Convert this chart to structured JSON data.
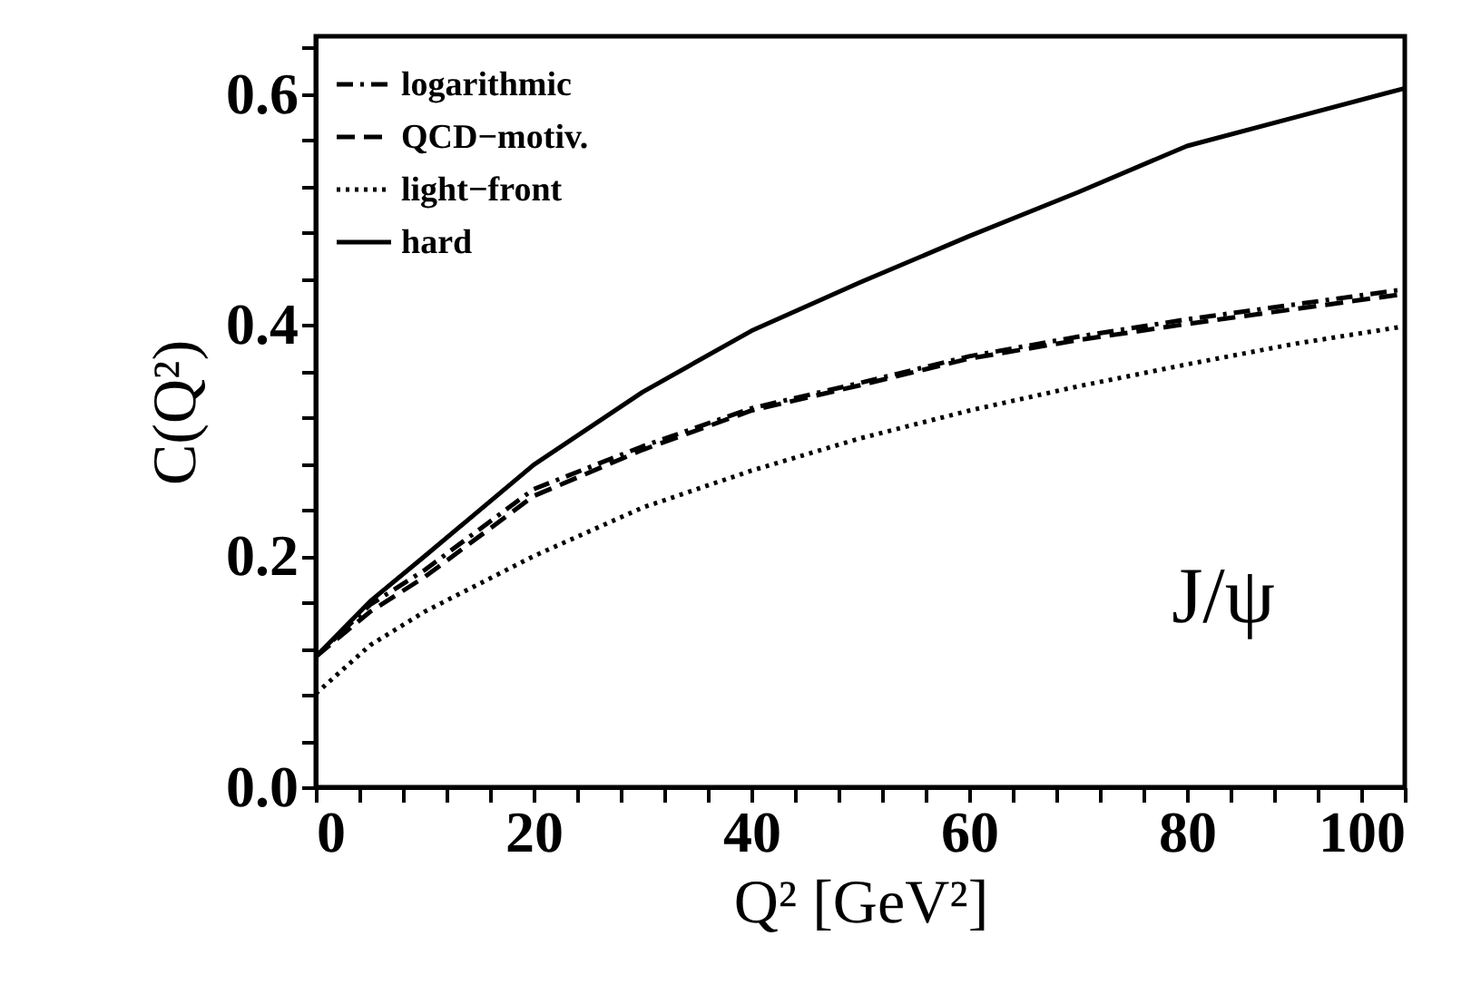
{
  "chart_data": {
    "type": "line",
    "xlabel": "Q² [GeV²]",
    "ylabel": "C(Q²)",
    "xlim": [
      0,
      100
    ],
    "ylim": [
      0,
      0.65
    ],
    "xticks": [
      0,
      {
        "value": 4,
        "label": null
      },
      {
        "value": 8,
        "label": null
      },
      {
        "value": 12,
        "label": null
      },
      {
        "value": 16,
        "label": null
      },
      20,
      {
        "value": 24,
        "label": null
      },
      {
        "value": 28,
        "label": null
      },
      {
        "value": 32,
        "label": null
      },
      {
        "value": 36,
        "label": null
      },
      40,
      {
        "value": 44,
        "label": null
      },
      {
        "value": 48,
        "label": null
      },
      {
        "value": 52,
        "label": null
      },
      {
        "value": 56,
        "label": null
      },
      60,
      {
        "value": 64,
        "label": null
      },
      {
        "value": 68,
        "label": null
      },
      {
        "value": 72,
        "label": null
      },
      {
        "value": 76,
        "label": null
      },
      80,
      {
        "value": 84,
        "label": null
      },
      {
        "value": 88,
        "label": null
      },
      {
        "value": 92,
        "label": null
      },
      {
        "value": 96,
        "label": null
      },
      100
    ],
    "yticks": [
      {
        "value": 0,
        "label": "0.0"
      },
      {
        "value": 0.04,
        "label": null
      },
      {
        "value": 0.08,
        "label": null
      },
      {
        "value": 0.12,
        "label": null
      },
      {
        "value": 0.16,
        "label": null
      },
      0.2,
      {
        "value": 0.24,
        "label": null
      },
      {
        "value": 0.28,
        "label": null
      },
      {
        "value": 0.32,
        "label": null
      },
      {
        "value": 0.36,
        "label": null
      },
      0.4,
      {
        "value": 0.44,
        "label": null
      },
      {
        "value": 0.48,
        "label": null
      },
      {
        "value": 0.52,
        "label": null
      },
      {
        "value": 0.56,
        "label": null
      },
      0.6,
      {
        "value": 0.64,
        "label": null
      }
    ],
    "x": [
      0,
      5,
      10,
      20,
      30,
      40,
      50,
      60,
      70,
      80,
      90,
      100
    ],
    "series": [
      {
        "name": "logarithmic",
        "color": "#000000",
        "line_style": "dashdot",
        "values": [
          0.113,
          0.158,
          0.188,
          0.258,
          0.295,
          0.328,
          0.35,
          0.373,
          0.39,
          0.405,
          0.418,
          0.431
        ]
      },
      {
        "name": "QCD−motiv.",
        "color": "#000000",
        "line_style": "dashed",
        "values": [
          0.113,
          0.152,
          0.182,
          0.252,
          0.292,
          0.326,
          0.348,
          0.371,
          0.387,
          0.401,
          0.414,
          0.427
        ]
      },
      {
        "name": "light−front",
        "color": "#000000",
        "line_style": "dotted",
        "values": [
          0.081,
          0.123,
          0.152,
          0.2,
          0.242,
          0.274,
          0.302,
          0.326,
          0.347,
          0.366,
          0.384,
          0.399
        ]
      },
      {
        "name": "hard",
        "color": "#000000",
        "line_style": "solid",
        "values": [
          0.113,
          0.161,
          0.2,
          0.279,
          0.342,
          0.395,
          0.437,
          0.477,
          0.515,
          0.555,
          0.58,
          0.605
        ]
      }
    ],
    "annotations": [
      "J/ψ"
    ],
    "legend": "top left",
    "grid": false
  }
}
